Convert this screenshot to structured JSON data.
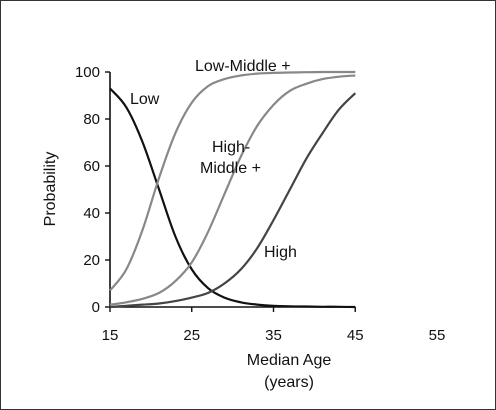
{
  "chart_data": {
    "type": "line",
    "xlabel": "Median Age",
    "xlabel_unit": "(years)",
    "ylabel": "Probability",
    "xlim": [
      15,
      55
    ],
    "ylim": [
      0,
      100
    ],
    "xticks": [
      "15",
      "25",
      "35",
      "45",
      "55"
    ],
    "yticks": [
      "0",
      "20",
      "40",
      "60",
      "80",
      "100"
    ],
    "grid": false,
    "legend": "none",
    "series": [
      {
        "name": "Low",
        "color": "#111111",
        "x": [
          15,
          17,
          19,
          21,
          23,
          25,
          27,
          29,
          31,
          33,
          35,
          37,
          39,
          41,
          43,
          45
        ],
        "y": [
          93,
          85,
          70,
          50,
          30,
          16,
          8,
          4,
          2,
          1,
          0.5,
          0.3,
          0.2,
          0.1,
          0.1,
          0
        ]
      },
      {
        "name": "Low-Middle +",
        "color": "#888888",
        "x": [
          15,
          17,
          19,
          21,
          23,
          25,
          27,
          29,
          31,
          33,
          35,
          37,
          39,
          41,
          43,
          45
        ],
        "y": [
          7,
          16,
          33,
          55,
          74,
          87,
          94,
          97,
          98.5,
          99.3,
          99.6,
          99.8,
          99.9,
          100,
          100,
          100
        ]
      },
      {
        "name": "High-Middle +",
        "color": "#888888",
        "x": [
          15,
          17,
          19,
          21,
          23,
          25,
          27,
          29,
          31,
          33,
          35,
          37,
          39,
          41,
          43,
          45
        ],
        "y": [
          1,
          2,
          3.5,
          6,
          11,
          19,
          32,
          48,
          64,
          77,
          86,
          92,
          95,
          97,
          98,
          98.5
        ]
      },
      {
        "name": "High",
        "color": "#444444",
        "x": [
          15,
          17,
          19,
          21,
          23,
          25,
          27,
          29,
          31,
          33,
          35,
          37,
          39,
          41,
          43,
          45
        ],
        "y": [
          0,
          0.5,
          1,
          1.5,
          2.5,
          4,
          6,
          10,
          16,
          25,
          37,
          50,
          63,
          74,
          84,
          91
        ]
      }
    ],
    "curve_labels": [
      {
        "series": "Low",
        "lines": [
          "Low"
        ]
      },
      {
        "series": "Low-Middle +",
        "lines": [
          "Low-Middle +"
        ]
      },
      {
        "series": "High-Middle +",
        "lines": [
          "High-",
          "Middle +"
        ]
      },
      {
        "series": "High",
        "lines": [
          "High"
        ]
      }
    ]
  }
}
